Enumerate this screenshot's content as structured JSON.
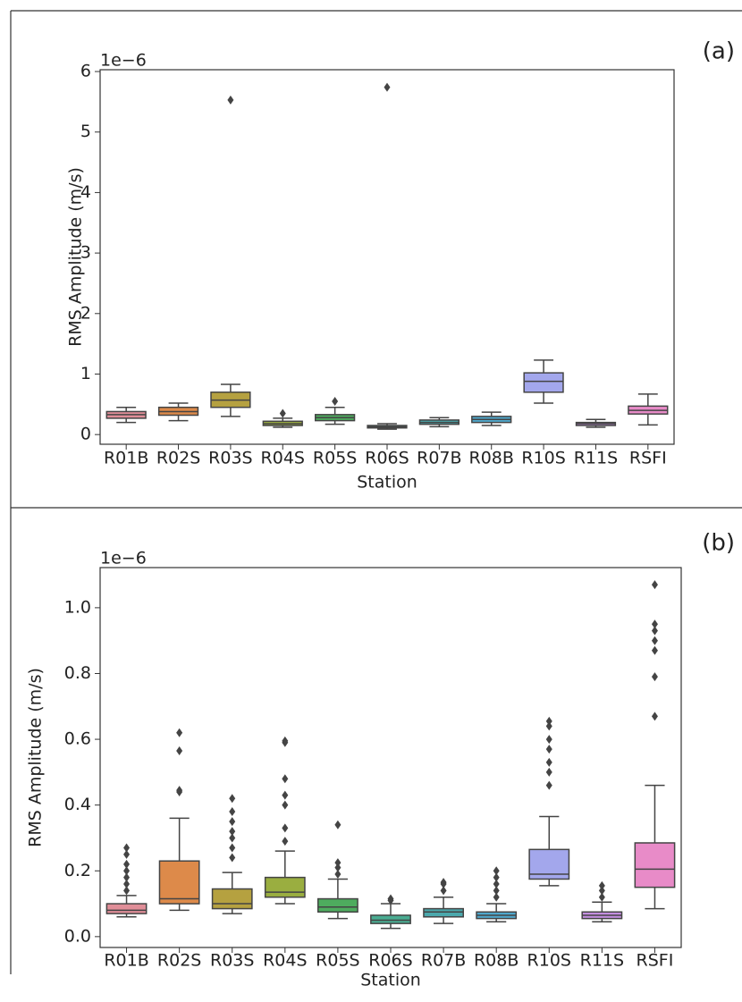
{
  "chart_data": [
    {
      "type": "box",
      "panel_label": "(a)",
      "offset_label": "1e−6",
      "y_label": "RMS Amplitude (m/s)",
      "x_label": "Station",
      "categories": [
        "R01B",
        "R02S",
        "R03S",
        "R04S",
        "R05S",
        "R06S",
        "R07B",
        "R08B",
        "R10S",
        "R11S",
        "RSFI"
      ],
      "colors": [
        "#e08e98",
        "#dd8a4a",
        "#b5a140",
        "#9aae40",
        "#4eac5e",
        "#4aac92",
        "#4ba8ac",
        "#50a8cc",
        "#a3a7ec",
        "#c48fe0",
        "#e88bc8"
      ],
      "boxes": [
        {
          "low": 0.2,
          "q1": 0.27,
          "median": 0.33,
          "q3": 0.38,
          "high": 0.45,
          "outliers": []
        },
        {
          "low": 0.23,
          "q1": 0.32,
          "median": 0.38,
          "q3": 0.45,
          "high": 0.52,
          "outliers": []
        },
        {
          "low": 0.3,
          "q1": 0.45,
          "median": 0.57,
          "q3": 0.7,
          "high": 0.83,
          "outliers": [
            5.53
          ]
        },
        {
          "low": 0.12,
          "q1": 0.15,
          "median": 0.18,
          "q3": 0.22,
          "high": 0.27,
          "outliers": [
            0.35
          ]
        },
        {
          "low": 0.17,
          "q1": 0.23,
          "median": 0.28,
          "q3": 0.33,
          "high": 0.45,
          "outliers": [
            0.55
          ]
        },
        {
          "low": 0.09,
          "q1": 0.11,
          "median": 0.13,
          "q3": 0.15,
          "high": 0.18,
          "outliers": [
            5.74
          ]
        },
        {
          "low": 0.13,
          "q1": 0.17,
          "median": 0.2,
          "q3": 0.24,
          "high": 0.28,
          "outliers": []
        },
        {
          "low": 0.15,
          "q1": 0.2,
          "median": 0.25,
          "q3": 0.3,
          "high": 0.37,
          "outliers": []
        },
        {
          "low": 0.52,
          "q1": 0.7,
          "median": 0.88,
          "q3": 1.02,
          "high": 1.23,
          "outliers": []
        },
        {
          "low": 0.12,
          "q1": 0.15,
          "median": 0.18,
          "q3": 0.2,
          "high": 0.25,
          "outliers": []
        },
        {
          "low": 0.16,
          "q1": 0.34,
          "median": 0.4,
          "q3": 0.47,
          "high": 0.67,
          "outliers": []
        }
      ],
      "ylim": [
        -0.16,
        6.03
      ],
      "yticks": [
        0,
        1,
        2,
        3,
        4,
        5,
        6
      ]
    },
    {
      "type": "box",
      "panel_label": "(b)",
      "offset_label": "1e−6",
      "y_label": "RMS Amplitude (m/s)",
      "x_label": "Station",
      "categories": [
        "R01B",
        "R02S",
        "R03S",
        "R04S",
        "R05S",
        "R06S",
        "R07B",
        "R08B",
        "R10S",
        "R11S",
        "RSFI"
      ],
      "colors": [
        "#e08e98",
        "#dd8a4a",
        "#b5a140",
        "#9aae40",
        "#4eac5e",
        "#4aac92",
        "#4ba8ac",
        "#50a8cc",
        "#a3a7ec",
        "#c48fe0",
        "#e88bc8"
      ],
      "boxes": [
        {
          "low": 0.06,
          "q1": 0.07,
          "median": 0.08,
          "q3": 0.1,
          "high": 0.125,
          "outliers": [
            0.14,
            0.16,
            0.18,
            0.2,
            0.22,
            0.25,
            0.27
          ]
        },
        {
          "low": 0.08,
          "q1": 0.1,
          "median": 0.115,
          "q3": 0.23,
          "high": 0.36,
          "outliers": [
            0.44,
            0.445,
            0.565,
            0.62
          ]
        },
        {
          "low": 0.07,
          "q1": 0.085,
          "median": 0.1,
          "q3": 0.145,
          "high": 0.195,
          "outliers": [
            0.24,
            0.27,
            0.3,
            0.32,
            0.35,
            0.38,
            0.42
          ]
        },
        {
          "low": 0.1,
          "q1": 0.12,
          "median": 0.135,
          "q3": 0.18,
          "high": 0.26,
          "outliers": [
            0.29,
            0.33,
            0.4,
            0.43,
            0.48,
            0.59,
            0.595
          ]
        },
        {
          "low": 0.055,
          "q1": 0.075,
          "median": 0.09,
          "q3": 0.115,
          "high": 0.175,
          "outliers": [
            0.19,
            0.21,
            0.225,
            0.34
          ]
        },
        {
          "low": 0.025,
          "q1": 0.04,
          "median": 0.05,
          "q3": 0.065,
          "high": 0.1,
          "outliers": [
            0.11,
            0.115
          ]
        },
        {
          "low": 0.04,
          "q1": 0.06,
          "median": 0.075,
          "q3": 0.085,
          "high": 0.12,
          "outliers": [
            0.14,
            0.16,
            0.165
          ]
        },
        {
          "low": 0.045,
          "q1": 0.055,
          "median": 0.065,
          "q3": 0.075,
          "high": 0.1,
          "outliers": [
            0.12,
            0.14,
            0.16,
            0.18,
            0.2
          ]
        },
        {
          "low": 0.155,
          "q1": 0.175,
          "median": 0.19,
          "q3": 0.265,
          "high": 0.365,
          "outliers": [
            0.46,
            0.5,
            0.53,
            0.57,
            0.6,
            0.64,
            0.655
          ]
        },
        {
          "low": 0.045,
          "q1": 0.055,
          "median": 0.065,
          "q3": 0.075,
          "high": 0.105,
          "outliers": [
            0.12,
            0.14,
            0.155
          ]
        },
        {
          "low": 0.085,
          "q1": 0.15,
          "median": 0.205,
          "q3": 0.285,
          "high": 0.46,
          "outliers": [
            0.67,
            0.79,
            0.87,
            0.9,
            0.93,
            0.95,
            1.07
          ]
        }
      ],
      "ylim": [
        -0.033,
        1.122
      ],
      "yticks": [
        {
          "value": 0,
          "label": "0.0"
        },
        0.2,
        0.4,
        0.6,
        0.8,
        {
          "value": 1,
          "label": "1.0"
        }
      ]
    }
  ]
}
